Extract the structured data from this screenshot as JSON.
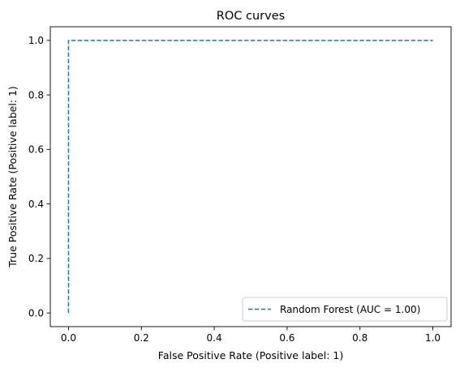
{
  "chart_data": {
    "type": "line",
    "title": "ROC curves",
    "xlabel": "False Positive Rate (Positive label: 1)",
    "ylabel": "True Positive Rate (Positive label: 1)",
    "xlim": [
      -0.05,
      1.05
    ],
    "ylim": [
      -0.05,
      1.05
    ],
    "grid": false,
    "legend_position": "lower right",
    "xticks": [
      0.0,
      0.2,
      0.4,
      0.6,
      0.8,
      1.0
    ],
    "yticks": [
      0.0,
      0.2,
      0.4,
      0.6,
      0.8,
      1.0
    ],
    "xtick_labels": [
      "0.0",
      "0.2",
      "0.4",
      "0.6",
      "0.8",
      "1.0"
    ],
    "ytick_labels": [
      "0.0",
      "0.2",
      "0.4",
      "0.6",
      "0.8",
      "1.0"
    ],
    "series": [
      {
        "name": "Random Forest (AUC = 1.00)",
        "color": "#1f77b4",
        "line_style": "dashed",
        "x": [
          0.0,
          0.0,
          1.0
        ],
        "y": [
          0.0,
          1.0,
          1.0
        ]
      }
    ]
  }
}
